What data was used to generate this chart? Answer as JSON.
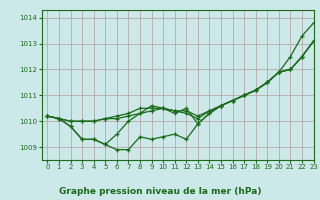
{
  "title": "Graphe pression niveau de la mer (hPa)",
  "bg_color": "#cce8e8",
  "grid_color": "#b8a8a8",
  "line_color": "#1a6b1a",
  "xlim": [
    -0.5,
    23
  ],
  "ylim": [
    1008.5,
    1014.3
  ],
  "yticks": [
    1009,
    1010,
    1011,
    1012,
    1013,
    1014
  ],
  "xticks": [
    0,
    1,
    2,
    3,
    4,
    5,
    6,
    7,
    8,
    9,
    10,
    11,
    12,
    13,
    14,
    15,
    16,
    17,
    18,
    19,
    20,
    21,
    22,
    23
  ],
  "series": [
    [
      1010.2,
      1010.1,
      1009.8,
      1009.3,
      1009.3,
      1009.1,
      1008.9,
      1008.9,
      1009.4,
      1009.3,
      1009.4,
      1009.5,
      1009.3,
      1009.9,
      1010.3,
      1010.6,
      1010.8,
      1011.0,
      1011.2,
      1011.5,
      1011.9,
      1012.5,
      1013.3,
      1013.8
    ],
    [
      1010.2,
      1010.1,
      1009.8,
      1009.3,
      1009.3,
      1009.1,
      1009.5,
      1010.0,
      1010.3,
      1010.6,
      1010.5,
      1010.3,
      1010.5,
      1009.9,
      1010.3,
      1010.6,
      1010.8,
      1011.0,
      1011.2,
      1011.5,
      1011.9,
      1012.0,
      1012.5,
      1013.1
    ],
    [
      1010.2,
      1010.1,
      1010.0,
      1010.0,
      1010.0,
      1010.1,
      1010.1,
      1010.2,
      1010.3,
      1010.4,
      1010.5,
      1010.4,
      1010.4,
      1010.2,
      1010.4,
      1010.6,
      1010.8,
      1011.0,
      1011.2,
      1011.5,
      1011.9,
      1012.0,
      1012.5,
      1013.1
    ],
    [
      1010.2,
      1010.1,
      1010.0,
      1010.0,
      1010.0,
      1010.1,
      1010.2,
      1010.3,
      1010.5,
      1010.5,
      1010.5,
      1010.4,
      1010.3,
      1010.1,
      1010.4,
      1010.6,
      1010.8,
      1011.0,
      1011.2,
      1011.5,
      1011.9,
      1012.0,
      1012.5,
      1013.1
    ]
  ]
}
